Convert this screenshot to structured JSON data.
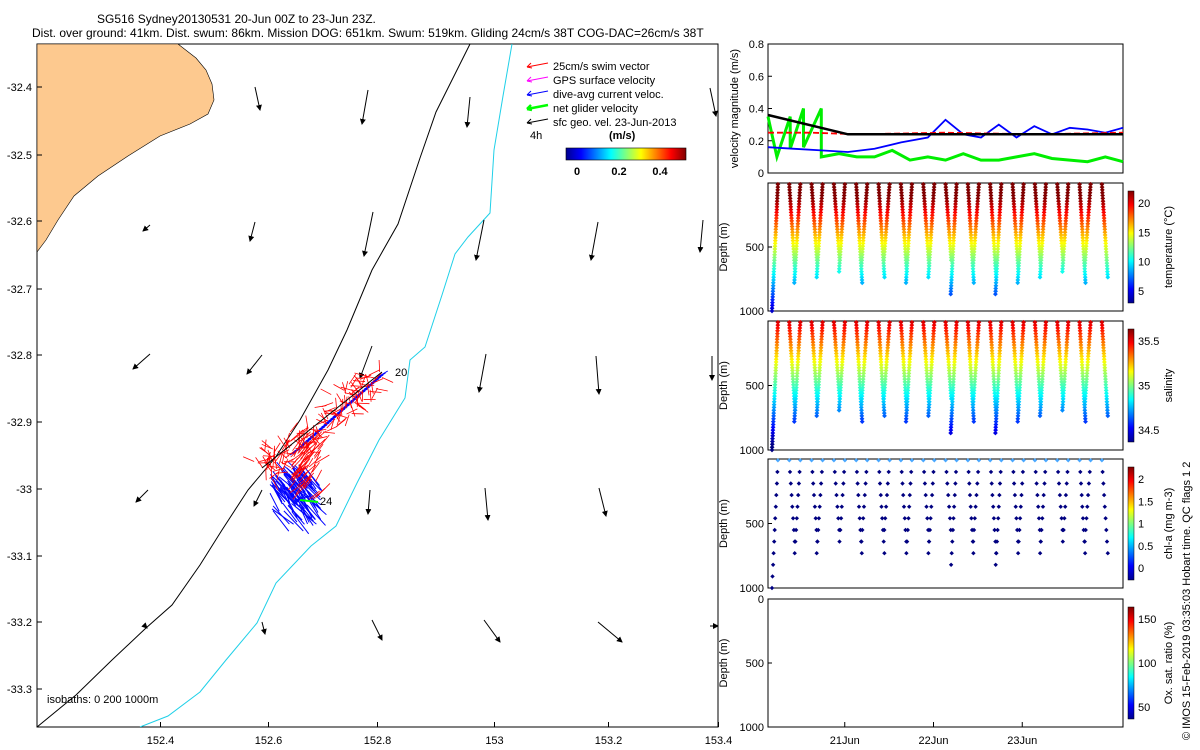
{
  "header": {
    "title_line1": "SG516 Sydney20130531 20-Jun 00Z to 23-Jun 23Z.",
    "title_line2": "Dist. over ground: 41km. Dist. swum: 86km. Mission DOG: 651km. Swum: 519km. Gliding 24cm/s 38T COG-DAC=26cm/s 38T"
  },
  "map": {
    "legend": [
      {
        "label": "25cm/s swim vector",
        "color": "#ff0000"
      },
      {
        "label": "GPS surface velocity",
        "color": "#ff00ff"
      },
      {
        "label": "dive-avg current veloc.",
        "color": "#0000ff"
      },
      {
        "label": "net glider velocity",
        "color": "#00ff00"
      },
      {
        "label": "sfc geo. vel. 23-Jun-2013",
        "color": "#000000"
      }
    ],
    "timestep_label": "4h",
    "colorbar_title": "(m/s)",
    "colorbar_ticks": [
      "0",
      "0.2",
      "0.4"
    ],
    "x_ticks": [
      "152.4",
      "152.6",
      "152.8",
      "153",
      "153.2",
      "153.4"
    ],
    "y_ticks": [
      "-32.4",
      "-32.5",
      "-32.6",
      "-32.7",
      "-32.8",
      "-32.9",
      "-33",
      "-33.1",
      "-33.2",
      "-33.3"
    ],
    "isobath_label": "isobaths: 0   200  1000m",
    "track_start_label": "20",
    "track_end_label": "24",
    "land_color": "#fdc98f"
  },
  "chart_data": [
    {
      "type": "line",
      "name": "velocity panel",
      "ylabel": "velocity magnitude (m/s)",
      "ylim": [
        0,
        0.8
      ],
      "y_ticks": [
        "0.8",
        "0.6",
        "0.4",
        "0.2",
        "0"
      ],
      "x_range_days": [
        20,
        24
      ],
      "series": [
        {
          "name": "net glider velocity",
          "color": "#00ee00",
          "x": [
            20.0,
            20.1,
            20.25,
            20.25,
            20.4,
            20.4,
            20.6,
            20.6,
            20.8,
            21.0,
            21.2,
            21.4,
            21.6,
            21.8,
            22.0,
            22.2,
            22.4,
            22.6,
            22.8,
            23.0,
            23.2,
            23.4,
            23.6,
            23.8,
            24.0
          ],
          "y": [
            0.35,
            0.1,
            0.35,
            0.15,
            0.4,
            0.16,
            0.4,
            0.1,
            0.12,
            0.1,
            0.1,
            0.14,
            0.08,
            0.1,
            0.08,
            0.12,
            0.08,
            0.08,
            0.1,
            0.12,
            0.09,
            0.08,
            0.07,
            0.1,
            0.07
          ]
        },
        {
          "name": "dive-avg current veloc.",
          "color": "#0000ff",
          "x": [
            20.0,
            20.3,
            20.6,
            20.9,
            21.2,
            21.5,
            21.8,
            22.0,
            22.2,
            22.4,
            22.6,
            22.8,
            23.0,
            23.2,
            23.4,
            23.6,
            23.8,
            24.0
          ],
          "y": [
            0.16,
            0.15,
            0.14,
            0.13,
            0.15,
            0.19,
            0.22,
            0.33,
            0.24,
            0.22,
            0.3,
            0.22,
            0.29,
            0.24,
            0.28,
            0.27,
            0.25,
            0.28
          ]
        },
        {
          "name": "25cm/s swim vector",
          "color": "#ff0000",
          "x": [
            20.0,
            20.5,
            21.0,
            22.0,
            23.0,
            24.0
          ],
          "y": [
            0.25,
            0.25,
            0.24,
            0.25,
            0.24,
            0.25
          ]
        },
        {
          "name": "sfc geo. vel. 23-Jun-2013",
          "color": "#000000",
          "x": [
            20.0,
            20.9,
            22.0,
            23.0,
            24.0
          ],
          "y": [
            0.36,
            0.24,
            0.24,
            0.24,
            0.24
          ]
        }
      ]
    },
    {
      "type": "scatter",
      "name": "temperature section",
      "ylabel": "Depth (m)",
      "ylim": [
        1000,
        0
      ],
      "y_ticks": [
        "500",
        "1000"
      ],
      "colorbar_label": "temperature (°C)",
      "colorbar_ticks": [
        "20",
        "15",
        "10",
        "5"
      ],
      "clim": [
        4,
        22
      ]
    },
    {
      "type": "scatter",
      "name": "salinity section",
      "ylabel": "Depth (m)",
      "ylim": [
        1000,
        0
      ],
      "y_ticks": [
        "500",
        "1000"
      ],
      "colorbar_label": "salinity",
      "colorbar_ticks": [
        "35.5",
        "35",
        "34.5"
      ],
      "clim": [
        34.3,
        35.8
      ]
    },
    {
      "type": "scatter",
      "name": "chlorophyll section",
      "ylabel": "Depth (m)",
      "ylim": [
        1000,
        0
      ],
      "y_ticks": [
        "500",
        "1000"
      ],
      "colorbar_label": "chl-a (mg m-3)",
      "colorbar_ticks": [
        "2",
        "1.5",
        "1",
        "0.5",
        "0"
      ],
      "clim": [
        0,
        2
      ]
    },
    {
      "type": "scatter",
      "name": "oxygen section",
      "ylabel": "Depth (m)",
      "ylim": [
        1000,
        0
      ],
      "y_ticks": [
        "0",
        "500",
        "1000"
      ],
      "colorbar_label": "Ox. sat. ratio (%)",
      "colorbar_ticks": [
        "150",
        "100",
        "50"
      ],
      "clim": [
        30,
        170
      ],
      "x_ticks": [
        "21Jun",
        "22Jun",
        "23Jun"
      ]
    }
  ],
  "footer": {
    "credit": "© IMOS 15-Feb-2019 03:35:03 Hobart time. QC flags 1  2"
  }
}
